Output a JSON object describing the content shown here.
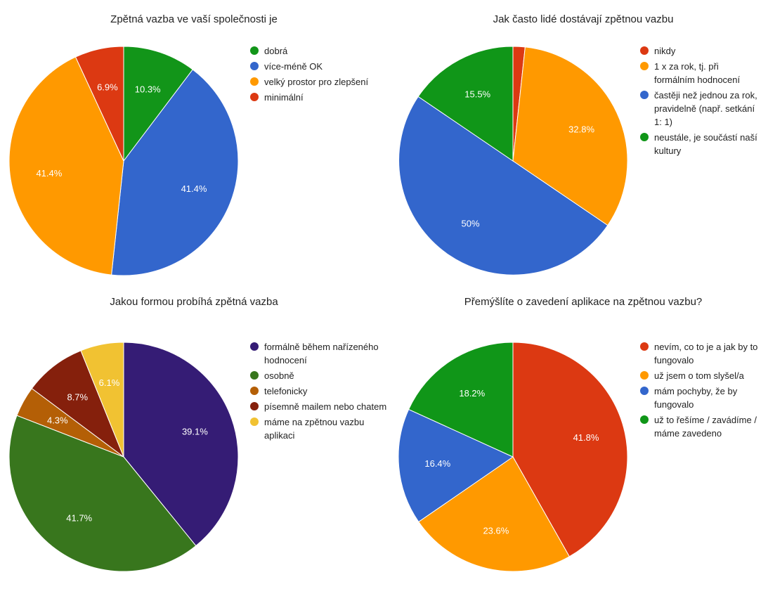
{
  "chart_data": [
    {
      "type": "pie",
      "title": "Zpětná vazba ve vaší společnosti je",
      "slices": [
        {
          "label": "dobrá",
          "value": 10.3,
          "display": "10.3%",
          "color": "#129519"
        },
        {
          "label": "více-méně OK",
          "value": 41.4,
          "display": "41.4%",
          "color": "#3366cc"
        },
        {
          "label": "velký prostor pro zlepšení",
          "value": 41.4,
          "display": "41.4%",
          "color": "#ff9900"
        },
        {
          "label": "minimální",
          "value": 6.9,
          "display": "6.9%",
          "color": "#dc3912"
        }
      ]
    },
    {
      "type": "pie",
      "title": "Jak často lidé dostávají zpětnou vazbu",
      "slices": [
        {
          "label": "nikdy",
          "value": 1.7,
          "display": "",
          "color": "#dc3912"
        },
        {
          "label": "1 x za rok, tj. při formálním hodnocení",
          "value": 32.8,
          "display": "32.8%",
          "color": "#ff9900"
        },
        {
          "label": "častěji než jednou za rok, pravidelně (např. setkání 1: 1)",
          "value": 50,
          "display": "50%",
          "color": "#3366cc"
        },
        {
          "label": "neustále, je součástí naší kultury",
          "value": 15.5,
          "display": "15.5%",
          "color": "#109618"
        }
      ]
    },
    {
      "type": "pie",
      "title": "Jakou formou probíhá zpětná vazba",
      "slices": [
        {
          "label": "formálně během nařízeného hodnocení",
          "value": 39.1,
          "display": "39.1%",
          "color": "#351c75"
        },
        {
          "label": "osobně",
          "value": 41.7,
          "display": "41.7%",
          "color": "#38761d"
        },
        {
          "label": "telefonicky",
          "value": 4.3,
          "display": "4.3%",
          "color": "#b45f06"
        },
        {
          "label": "písemně mailem nebo chatem",
          "value": 8.7,
          "display": "8.7%",
          "color": "#85200c"
        },
        {
          "label": "máme na zpětnou vazbu aplikaci",
          "value": 6.1,
          "display": "6.1%",
          "color": "#f1c232"
        }
      ]
    },
    {
      "type": "pie",
      "title": "Přemýšlíte o zavedení aplikace na zpětnou vazbu?",
      "slices": [
        {
          "label": "nevím, co to je a jak by to fungovalo",
          "value": 41.8,
          "display": "41.8%",
          "color": "#dc3912"
        },
        {
          "label": "už jsem o tom slyšel/a",
          "value": 23.6,
          "display": "23.6%",
          "color": "#ff9900"
        },
        {
          "label": "mám pochyby, že by fungovalo",
          "value": 16.4,
          "display": "16.4%",
          "color": "#3366cc"
        },
        {
          "label": "už to řešíme / zavádíme / máme zavedeno",
          "value": 18.2,
          "display": "18.2%",
          "color": "#109618"
        }
      ]
    }
  ]
}
